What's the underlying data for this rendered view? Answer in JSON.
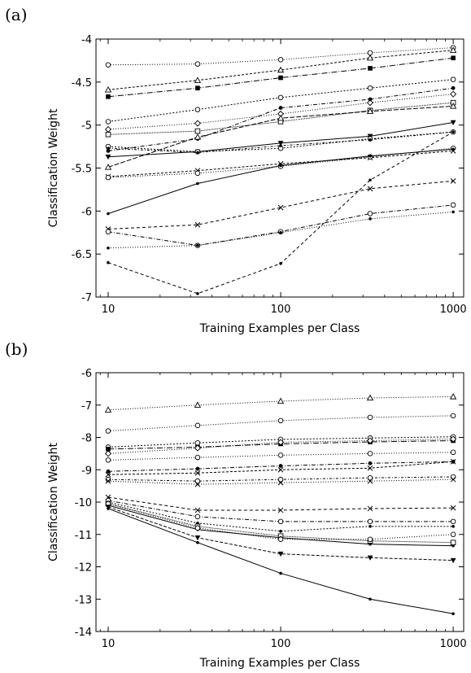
{
  "figure": {
    "panel_labels": [
      "(a)",
      "(b)"
    ]
  },
  "chart_data": [
    {
      "type": "line",
      "panel": "(a)",
      "xlabel": "Training Examples per Class",
      "ylabel": "Classification Weight",
      "x_scale": "log",
      "xlim": [
        8.5,
        1150
      ],
      "ylim": [
        -7,
        -4
      ],
      "x_ticks": [
        10,
        100,
        1000
      ],
      "x_tick_labels": [
        "10",
        "100",
        "1000"
      ],
      "y_ticks": [
        -7,
        -6.5,
        -6,
        -5.5,
        -5,
        -4.5,
        -4
      ],
      "y_tick_labels": [
        "-7",
        "-6.5",
        "-6",
        "-5.5",
        "-5",
        "-4.5",
        "-4"
      ],
      "grid": false,
      "x": [
        10,
        33,
        100,
        330,
        1000
      ],
      "series": [
        {
          "marker": "circle",
          "dash": "1,2",
          "values": [
            -4.3,
            -4.29,
            -4.24,
            -4.16,
            -4.1
          ]
        },
        {
          "marker": "triangle",
          "dash": "3,2",
          "values": [
            -4.59,
            -4.48,
            -4.36,
            -4.22,
            -4.13
          ]
        },
        {
          "marker": "square-filled",
          "dash": "7,2,1,2",
          "values": [
            -4.67,
            -4.57,
            -4.45,
            -4.34,
            -4.22
          ]
        },
        {
          "marker": "circle",
          "dash": "2,2",
          "values": [
            -4.96,
            -4.82,
            -4.68,
            -4.57,
            -4.47
          ]
        },
        {
          "marker": "diamond",
          "dash": "1,2",
          "values": [
            -5.05,
            -4.98,
            -4.87,
            -4.74,
            -4.64
          ]
        },
        {
          "marker": "square",
          "dash": "1,1",
          "values": [
            -5.11,
            -5.07,
            -4.96,
            -4.83,
            -4.74
          ]
        },
        {
          "marker": "circle-filled",
          "dash": "5,2,1,2",
          "values": [
            -5.3,
            -5.16,
            -4.8,
            -4.7,
            -4.57
          ]
        },
        {
          "marker": "triangle-down",
          "dash": "",
          "values": [
            -5.37,
            -5.31,
            -5.21,
            -5.13,
            -4.97
          ]
        },
        {
          "marker": "cross",
          "dash": "3,2",
          "values": [
            -5.6,
            -5.53,
            -5.45,
            -5.38,
            -5.3
          ]
        },
        {
          "marker": "circle",
          "dash": "1,2",
          "values": [
            -5.61,
            -5.56,
            -5.48,
            -5.37,
            -5.27
          ]
        },
        {
          "marker": "dot",
          "dash": "",
          "values": [
            -6.03,
            -5.68,
            -5.47,
            -5.36,
            -5.28
          ]
        },
        {
          "marker": "cross",
          "dash": "4,3",
          "values": [
            -6.21,
            -6.16,
            -5.96,
            -5.74,
            -5.65
          ]
        },
        {
          "marker": "circle",
          "dash": "5,2,1,2",
          "values": [
            -6.24,
            -6.4,
            -6.24,
            -6.03,
            -5.93
          ]
        },
        {
          "marker": "dot",
          "dash": "1,2",
          "values": [
            -6.43,
            -6.4,
            -6.25,
            -6.09,
            -6.01
          ]
        },
        {
          "marker": "dot",
          "dash": "4,3",
          "values": [
            -6.6,
            -6.96,
            -6.61,
            -5.64,
            -5.08
          ]
        },
        {
          "marker": "circle",
          "dash": "2,2",
          "values": [
            -5.25,
            -5.31,
            -5.27,
            -5.16,
            -5.08
          ]
        },
        {
          "marker": "triangle",
          "dash": "6,2",
          "values": [
            -5.49,
            -5.14,
            -4.92,
            -4.84,
            -4.78
          ]
        },
        {
          "marker": "dot",
          "dash": "3,2,1,2",
          "values": [
            -5.27,
            -5.32,
            -5.24,
            -5.17,
            -5.08
          ]
        }
      ]
    },
    {
      "type": "line",
      "panel": "(b)",
      "xlabel": "Training Examples per Class",
      "ylabel": "Classification Weight",
      "x_scale": "log",
      "xlim": [
        8.5,
        1150
      ],
      "ylim": [
        -14,
        -6
      ],
      "x_ticks": [
        10,
        100,
        1000
      ],
      "x_tick_labels": [
        "10",
        "100",
        "1000"
      ],
      "y_ticks": [
        -14,
        -13,
        -12,
        -11,
        -10,
        -9,
        -8,
        -7,
        -6
      ],
      "y_tick_labels": [
        "-14",
        "-13",
        "-12",
        "-11",
        "-10",
        "-9",
        "-8",
        "-7",
        "-6"
      ],
      "grid": false,
      "x": [
        10,
        33,
        100,
        330,
        1000
      ],
      "series": [
        {
          "marker": "triangle",
          "dash": "1,2",
          "values": [
            -7.15,
            -7.0,
            -6.88,
            -6.78,
            -6.74
          ]
        },
        {
          "marker": "circle",
          "dash": "1,2",
          "values": [
            -7.8,
            -7.63,
            -7.48,
            -7.38,
            -7.33
          ]
        },
        {
          "marker": "circle",
          "dash": "2,2",
          "values": [
            -8.3,
            -8.17,
            -8.06,
            -8.02,
            -7.98
          ]
        },
        {
          "marker": "square-filled",
          "dash": "7,2,1,2",
          "values": [
            -8.36,
            -8.3,
            -8.2,
            -8.14,
            -8.1
          ]
        },
        {
          "marker": "diamond",
          "dash": "1,2",
          "values": [
            -8.5,
            -8.33,
            -8.15,
            -8.1,
            -8.05
          ]
        },
        {
          "marker": "circle",
          "dash": "1,2",
          "values": [
            -8.7,
            -8.62,
            -8.55,
            -8.5,
            -8.46
          ]
        },
        {
          "marker": "circle-filled",
          "dash": "5,2,1,2",
          "values": [
            -9.05,
            -8.97,
            -8.88,
            -8.8,
            -8.75
          ]
        },
        {
          "marker": "cross",
          "dash": "3,2",
          "values": [
            -9.15,
            -9.1,
            -9.0,
            -8.95,
            -8.75
          ]
        },
        {
          "marker": "circle",
          "dash": "3,2,1,2",
          "values": [
            -9.3,
            -9.35,
            -9.3,
            -9.25,
            -9.22
          ]
        },
        {
          "marker": "cross",
          "dash": "1,2",
          "values": [
            -9.35,
            -9.45,
            -9.4,
            -9.35,
            -9.3
          ]
        },
        {
          "marker": "cross",
          "dash": "4,3",
          "values": [
            -9.85,
            -10.25,
            -10.25,
            -10.2,
            -10.18
          ]
        },
        {
          "marker": "circle",
          "dash": "5,2,1,2",
          "values": [
            -9.95,
            -10.45,
            -10.6,
            -10.6,
            -10.6
          ]
        },
        {
          "marker": "dot",
          "dash": "2,2",
          "values": [
            -10.0,
            -10.65,
            -10.9,
            -10.75,
            -10.75
          ]
        },
        {
          "marker": "square",
          "dash": "1,1",
          "values": [
            -10.05,
            -10.75,
            -11.05,
            -11.2,
            -11.25
          ]
        },
        {
          "marker": "dot",
          "dash": "",
          "values": [
            -10.1,
            -10.85,
            -11.1,
            -11.3,
            -11.35
          ]
        },
        {
          "marker": "circle",
          "dash": "1,2",
          "values": [
            -10.05,
            -10.8,
            -11.15,
            -11.15,
            -11.0
          ]
        },
        {
          "marker": "triangle-down",
          "dash": "4,2",
          "values": [
            -10.15,
            -11.1,
            -11.6,
            -11.72,
            -11.8
          ]
        },
        {
          "marker": "dot",
          "dash": "",
          "values": [
            -10.2,
            -11.25,
            -12.2,
            -13.0,
            -13.45
          ]
        }
      ]
    }
  ]
}
